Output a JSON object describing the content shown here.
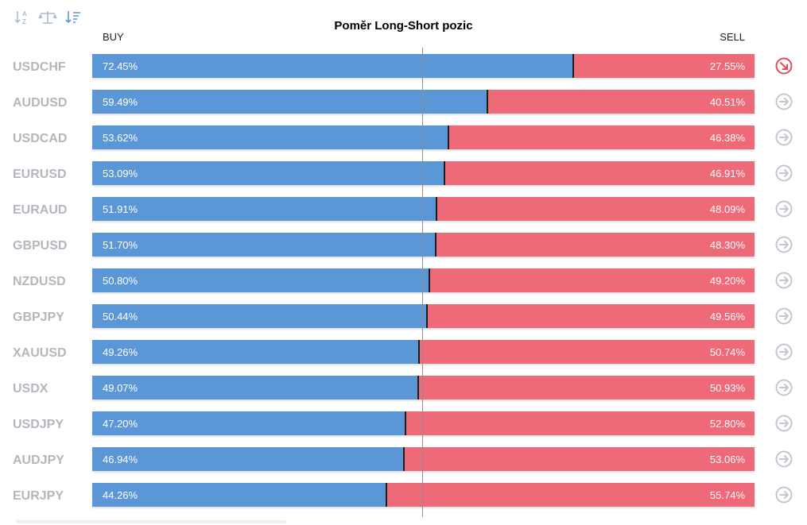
{
  "toolbar": {
    "icons": [
      "sort-alpha-icon",
      "balance-scale-icon",
      "sort-amount-icon"
    ]
  },
  "colors": {
    "buy": "#5b97d7",
    "sell": "#ef6a79",
    "label": "#b3b7bd",
    "arrow_inactive": "#c3c7cd",
    "arrow_active": "#e8495c"
  },
  "chart_data": {
    "type": "bar",
    "stacked": true,
    "orientation": "horizontal",
    "title": "Poměr Long-Short pozic",
    "buy_label": "BUY",
    "sell_label": "SELL",
    "categories": [
      "USDCHF",
      "AUDUSD",
      "USDCAD",
      "EURUSD",
      "EURAUD",
      "GBPUSD",
      "NZDUSD",
      "GBPJPY",
      "XAUUSD",
      "USDX",
      "USDJPY",
      "AUDJPY",
      "EURJPY"
    ],
    "series": [
      {
        "name": "BUY",
        "values": [
          72.45,
          59.49,
          53.62,
          53.09,
          51.91,
          51.7,
          50.8,
          50.44,
          49.26,
          49.07,
          47.2,
          46.94,
          44.26
        ]
      },
      {
        "name": "SELL",
        "values": [
          27.55,
          40.51,
          46.38,
          46.91,
          48.09,
          48.3,
          49.2,
          49.56,
          50.74,
          50.93,
          52.8,
          53.06,
          55.74
        ]
      }
    ],
    "buy_display": [
      "72.45%",
      "59.49%",
      "53.62%",
      "53.09%",
      "51.91%",
      "51.70%",
      "50.80%",
      "50.44%",
      "49.26%",
      "49.07%",
      "47.20%",
      "46.94%",
      "44.26%"
    ],
    "sell_display": [
      "27.55%",
      "40.51%",
      "46.38%",
      "46.91%",
      "48.09%",
      "48.30%",
      "49.20%",
      "49.56%",
      "50.74%",
      "50.93%",
      "52.80%",
      "53.06%",
      "55.74%"
    ],
    "row_icons": [
      "arrow-down-right-icon",
      "arrow-right-icon",
      "arrow-right-icon",
      "arrow-right-icon",
      "arrow-right-icon",
      "arrow-right-icon",
      "arrow-right-icon",
      "arrow-right-icon",
      "arrow-right-icon",
      "arrow-right-icon",
      "arrow-right-icon",
      "arrow-right-icon",
      "arrow-right-icon"
    ],
    "active_row": 0,
    "xlim": [
      0,
      100
    ],
    "reference_line": 50
  }
}
